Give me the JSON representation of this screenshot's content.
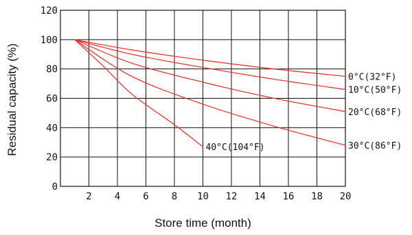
{
  "chart_data": {
    "type": "line",
    "title": "",
    "xlabel": "Store time (month)",
    "ylabel": "Residual capacity (%)",
    "xlim": [
      0,
      20
    ],
    "ylim": [
      0,
      120
    ],
    "x_ticks": [
      2,
      4,
      6,
      8,
      10,
      12,
      14,
      16,
      18,
      20
    ],
    "y_ticks": [
      0,
      20,
      40,
      60,
      80,
      100,
      120
    ],
    "grid": true,
    "colors": {
      "series": "#e8382f",
      "grid": "#111111",
      "text": "#111111"
    },
    "series": [
      {
        "name": "0°C(32°F)",
        "x": [
          1,
          5,
          10,
          15,
          20
        ],
        "y": [
          100,
          93,
          86,
          80,
          75
        ]
      },
      {
        "name": "10°C(50°F)",
        "x": [
          1,
          5,
          10,
          15,
          20
        ],
        "y": [
          100,
          90,
          81,
          73,
          66
        ]
      },
      {
        "name": "20°C(68°F)",
        "x": [
          1,
          5,
          10,
          15,
          20
        ],
        "y": [
          100,
          84,
          71,
          60,
          51
        ]
      },
      {
        "name": "30°C(86°F)",
        "x": [
          1,
          5,
          10,
          15,
          20
        ],
        "y": [
          100,
          75,
          56,
          41,
          28
        ]
      },
      {
        "name": "40°C(104°F)",
        "x": [
          1,
          3,
          5,
          8,
          10
        ],
        "y": [
          100,
          82,
          63,
          42,
          27
        ]
      }
    ]
  }
}
